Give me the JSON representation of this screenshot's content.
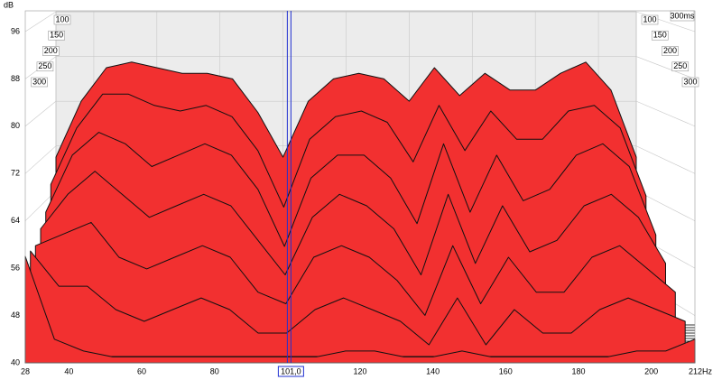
{
  "chart_data": {
    "type": "waterfall",
    "ylabel": "dB",
    "x": [
      28,
      36,
      44,
      52,
      60,
      68,
      76,
      84,
      92,
      100,
      108,
      116,
      124,
      132,
      140,
      148,
      156,
      164,
      172,
      180,
      188,
      196,
      204,
      212
    ],
    "xlim": [
      28,
      212
    ],
    "xticks": [
      28,
      40,
      60,
      80,
      100,
      120,
      140,
      160,
      180,
      200,
      {
        "value": 212,
        "label": "212Hz"
      }
    ],
    "ylim": [
      40,
      96
    ],
    "yticks": [
      40,
      48,
      56,
      64,
      72,
      80,
      88,
      96
    ],
    "zlim": [
      0,
      300
    ],
    "zlim_label": "300ms",
    "zticks": [
      100,
      150,
      200,
      250,
      300
    ],
    "color": "#f23030",
    "grid": true,
    "cursor": {
      "value": 101,
      "label": "101,0"
    },
    "series": [
      {
        "time": 0,
        "values": [
          70,
          80,
          86,
          87,
          86,
          85,
          85,
          84,
          78,
          70,
          80,
          84,
          85,
          84,
          80,
          86,
          81,
          85,
          82,
          82,
          85,
          87,
          82,
          70
        ]
      },
      {
        "time": 50,
        "values": [
          66,
          76,
          82,
          82,
          80,
          79,
          80,
          78,
          72,
          62,
          74,
          78,
          79,
          77,
          70,
          80,
          72,
          79,
          74,
          74,
          79,
          80,
          76,
          64
        ]
      },
      {
        "time": 100,
        "values": [
          62,
          72,
          76,
          74,
          70,
          72,
          74,
          72,
          66,
          56,
          68,
          72,
          72,
          68,
          60,
          74,
          62,
          72,
          64,
          66,
          72,
          74,
          70,
          58
        ]
      },
      {
        "time": 150,
        "values": [
          60,
          66,
          70,
          66,
          62,
          64,
          66,
          64,
          58,
          52,
          62,
          66,
          64,
          60,
          52,
          66,
          54,
          64,
          56,
          58,
          64,
          66,
          62,
          54
        ]
      },
      {
        "time": 200,
        "values": [
          58,
          60,
          62,
          56,
          54,
          56,
          58,
          56,
          50,
          48,
          56,
          58,
          56,
          52,
          46,
          58,
          48,
          56,
          50,
          50,
          56,
          58,
          54,
          50
        ]
      },
      {
        "time": 250,
        "values": [
          58,
          52,
          52,
          48,
          46,
          48,
          50,
          48,
          44,
          44,
          48,
          50,
          48,
          46,
          42,
          50,
          42,
          48,
          44,
          44,
          48,
          50,
          48,
          46
        ]
      },
      {
        "time": 300,
        "values": [
          58,
          44,
          42,
          41,
          41,
          41,
          41,
          41,
          41,
          41,
          41,
          42,
          42,
          41,
          41,
          42,
          41,
          41,
          41,
          41,
          41,
          42,
          42,
          44
        ]
      }
    ]
  }
}
